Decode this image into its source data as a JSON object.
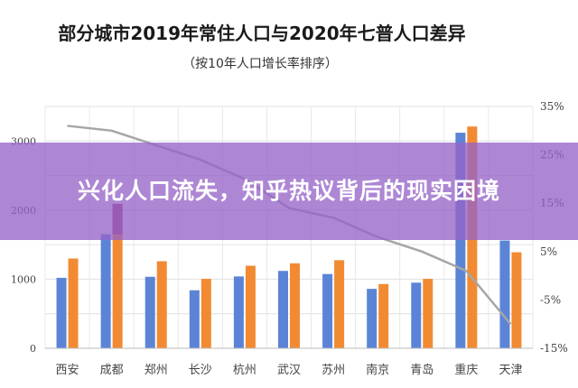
{
  "overlay": {
    "headline": "兴化人口流失，知乎热议背后的现实困境"
  },
  "chart_data": {
    "type": "bar",
    "title": "部分城市2019年常住人口与2020年七普人口差异",
    "subtitle": "（按10年人口增长率排序）",
    "categories": [
      "西安",
      "成都",
      "郑州",
      "长沙",
      "杭州",
      "武汉",
      "苏州",
      "南京",
      "青岛",
      "重庆",
      "天津"
    ],
    "series": [
      {
        "values": [
          1020,
          1650,
          1035,
          840,
          1040,
          1120,
          1075,
          860,
          950,
          3120,
          1560
        ],
        "color": "#5b84d6"
      },
      {
        "values": [
          1300,
          2090,
          1260,
          1005,
          1195,
          1230,
          1275,
          930,
          1005,
          3210,
          1390
        ],
        "color": "#f28a33"
      }
    ],
    "line": {
      "values": [
        31,
        30,
        27,
        24,
        20,
        14,
        12,
        8,
        5,
        1,
        -10
      ],
      "color": "#a6a6a6"
    },
    "ylim_left": [
      0,
      3500
    ],
    "yticks_left": [
      "0",
      "1000",
      "2000",
      "3000"
    ],
    "ylim_right": [
      -15,
      35
    ],
    "yticks_right": [
      "-15%",
      "-5%",
      "5%",
      "15%",
      "25%",
      "35%"
    ],
    "grid": true,
    "highlight_color": "#a23c6b"
  }
}
